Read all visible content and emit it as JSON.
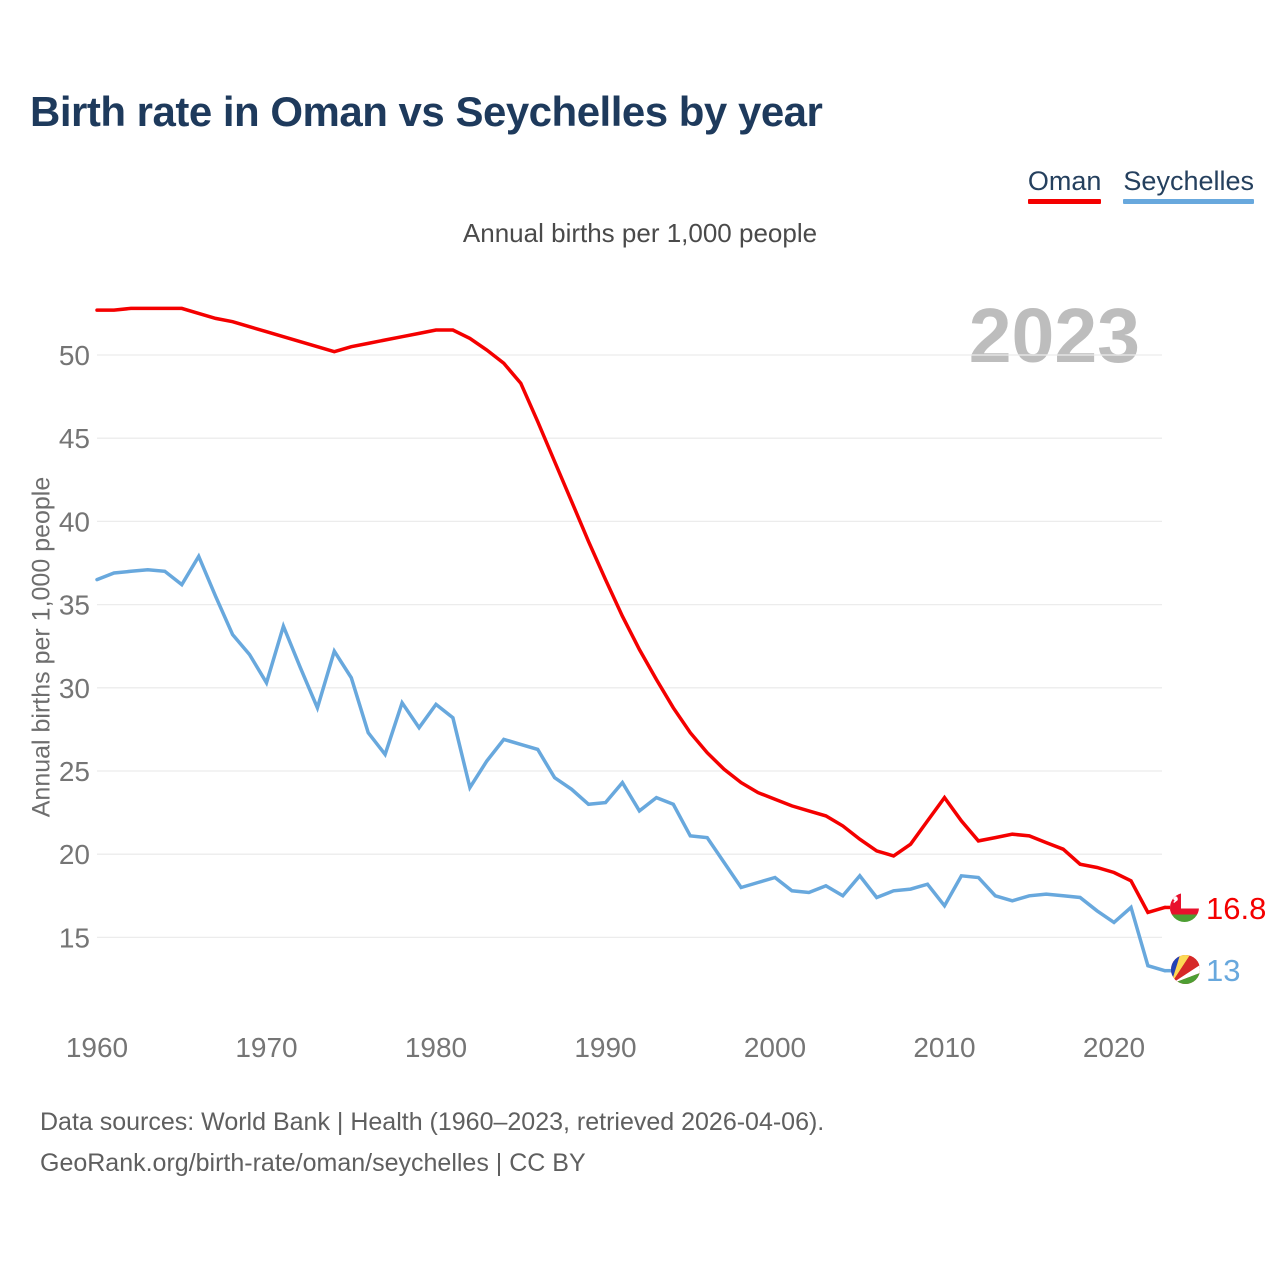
{
  "header": {
    "title": "Birth rate in Oman vs Seychelles by year"
  },
  "legend": {
    "items": [
      {
        "label": "Oman",
        "color": "#f40000"
      },
      {
        "label": "Seychelles",
        "color": "#68a8dd"
      }
    ]
  },
  "chart": {
    "subtitle": "Annual births per 1,000 people",
    "ylabel": "Annual births per 1,000 people",
    "watermark": "2023",
    "end_labels": {
      "oman": "16.8",
      "seychelles": "13"
    }
  },
  "footer": {
    "line1": "Data sources: World Bank | Health (1960–2023, retrieved 2026-04-06).",
    "line2": "GeoRank.org/birth-rate/oman/seychelles | CC BY"
  },
  "chart_data": {
    "type": "line",
    "title": "Birth rate in Oman vs Seychelles by year",
    "subtitle": "Annual births per 1,000 people",
    "xlabel": "",
    "ylabel": "Annual births per 1,000 people",
    "x_start": 1960,
    "x_end": 2023,
    "xticks": [
      1960,
      1970,
      1980,
      1990,
      2000,
      2010,
      2020
    ],
    "yticks": [
      15,
      20,
      25,
      30,
      35,
      40,
      45,
      50
    ],
    "ylim": [
      12.5,
      53.5
    ],
    "grid": "horizontal",
    "legend_position": "top-right",
    "watermark": "2023",
    "series": [
      {
        "name": "Oman",
        "color": "#f40000",
        "end_label": "16.8",
        "values": [
          52.7,
          52.7,
          52.8,
          52.8,
          52.8,
          52.8,
          52.5,
          52.2,
          52.0,
          51.7,
          51.4,
          51.1,
          50.8,
          50.5,
          50.2,
          50.5,
          50.7,
          50.9,
          51.1,
          51.3,
          51.5,
          51.5,
          51.0,
          50.3,
          49.5,
          48.3,
          46.0,
          43.6,
          41.2,
          38.8,
          36.5,
          34.3,
          32.3,
          30.5,
          28.8,
          27.3,
          26.1,
          25.1,
          24.3,
          23.7,
          23.3,
          22.9,
          22.6,
          22.3,
          21.7,
          20.9,
          20.2,
          19.9,
          20.6,
          22.0,
          23.4,
          22.0,
          20.8,
          21.0,
          21.2,
          21.1,
          20.7,
          20.3,
          19.4,
          19.2,
          18.9,
          18.4,
          16.5,
          16.8
        ]
      },
      {
        "name": "Seychelles",
        "color": "#68a8dd",
        "end_label": "13",
        "values": [
          36.5,
          36.9,
          37.0,
          37.1,
          37.0,
          36.2,
          37.9,
          35.5,
          33.2,
          32.0,
          30.3,
          33.7,
          31.2,
          28.8,
          32.2,
          30.6,
          27.3,
          26.0,
          29.1,
          27.6,
          29.0,
          28.2,
          24.0,
          25.6,
          26.9,
          26.6,
          26.3,
          24.6,
          23.9,
          23.0,
          23.1,
          24.3,
          22.6,
          23.4,
          23.0,
          21.1,
          21.0,
          19.5,
          18.0,
          18.3,
          18.6,
          17.8,
          17.7,
          18.1,
          17.5,
          18.7,
          17.4,
          17.8,
          17.9,
          18.2,
          16.9,
          18.7,
          18.6,
          17.5,
          17.2,
          17.5,
          17.6,
          17.5,
          17.4,
          16.6,
          15.9,
          16.8,
          13.3,
          13.0
        ]
      }
    ]
  }
}
